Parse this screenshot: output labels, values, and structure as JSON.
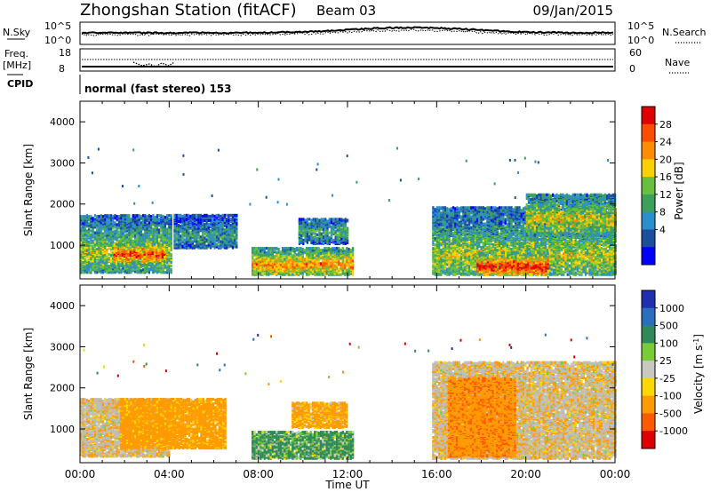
{
  "header": {
    "station": "Zhongshan Station (fitACF)",
    "beam": "Beam 03",
    "date": "09/Jan/2015"
  },
  "summary": {
    "nsky_label": "N.Sky",
    "nsearch_label": "N.Search",
    "left_ticks": [
      "10^5",
      "10^0"
    ],
    "right_ticks": [
      "10^5",
      "10^0"
    ],
    "freq_label": "Freq.",
    "freq_unit": "[MHz]",
    "freq_ticks": [
      "18",
      "8"
    ],
    "nave_label": "Nave",
    "nave_ticks": [
      "60",
      "0"
    ],
    "cpid_label": "CPID",
    "cpid_text": "normal (fast stereo) 153"
  },
  "colors": {
    "power": [
      "#0000ff",
      "#1a4fa0",
      "#2b8fcf",
      "#3aa05a",
      "#66c23a",
      "#ffd000",
      "#ff8c00",
      "#ff4d00",
      "#e00000"
    ],
    "velocity": [
      "#1e2fb0",
      "#2a6fbf",
      "#2e8b57",
      "#7acb3a",
      "#c8c8c0",
      "#ffd700",
      "#ff9a00",
      "#ff5a00",
      "#e00000"
    ],
    "ground_scatter": "#bdbdb5"
  },
  "chart_data": [
    {
      "type": "heatmap",
      "title": "",
      "ylabel": "Slant Range [km]",
      "xlabel": "",
      "ylim": [
        180,
        4500
      ],
      "yticks": [
        "4000",
        "3000",
        "2000",
        "1000"
      ],
      "xticks": [
        "00:00",
        "04:00",
        "08:00",
        "12:00",
        "16:00",
        "20:00",
        "00:00"
      ],
      "colorbar": {
        "label": "Power [dB]",
        "ticks": [
          "28",
          "24",
          "20",
          "16",
          "12",
          "8",
          "4"
        ]
      },
      "regions": [
        {
          "t0": 0.0,
          "t1": 4.1,
          "r0": 300,
          "r1": 1700,
          "core": 800,
          "level": 0.55
        },
        {
          "t0": 1.5,
          "t1": 3.8,
          "r0": 500,
          "r1": 1000,
          "core": 750,
          "level": 0.9
        },
        {
          "t0": 4.2,
          "t1": 7.0,
          "r0": 900,
          "r1": 1700,
          "core": 1200,
          "level": 0.35
        },
        {
          "t0": 7.7,
          "t1": 12.2,
          "r0": 250,
          "r1": 900,
          "core": 500,
          "level": 0.75
        },
        {
          "t0": 9.8,
          "t1": 12.0,
          "r0": 1000,
          "r1": 1600,
          "core": 1300,
          "level": 0.4
        },
        {
          "t0": 15.8,
          "t1": 24.0,
          "r0": 250,
          "r1": 1900,
          "core": 700,
          "level": 0.55
        },
        {
          "t0": 17.8,
          "t1": 21.0,
          "r0": 250,
          "r1": 800,
          "core": 450,
          "level": 0.95
        },
        {
          "t0": 20.0,
          "t1": 24.0,
          "r0": 1200,
          "r1": 2200,
          "core": 1600,
          "level": 0.6
        }
      ]
    },
    {
      "type": "heatmap",
      "title": "",
      "ylabel": "Slant Range [km]",
      "xlabel": "Time UT",
      "ylim": [
        180,
        4500
      ],
      "yticks": [
        "4000",
        "3000",
        "2000",
        "1000"
      ],
      "xticks": [
        "00:00",
        "04:00",
        "08:00",
        "12:00",
        "16:00",
        "20:00",
        "00:00"
      ],
      "colorbar": {
        "label": "Velocity [m s^-1]",
        "ticks": [
          "1000",
          "500",
          "100",
          "25",
          "-25",
          "-100",
          "-500",
          "-1000"
        ]
      },
      "regions": [
        {
          "t0": 0.0,
          "t1": 4.0,
          "r0": 300,
          "r1": 1700,
          "vel": -150,
          "gs": true
        },
        {
          "t0": 1.8,
          "t1": 6.5,
          "r0": 500,
          "r1": 1700,
          "vel": -250,
          "gs": false
        },
        {
          "t0": 7.7,
          "t1": 12.2,
          "r0": 250,
          "r1": 900,
          "vel": 150,
          "gs": false
        },
        {
          "t0": 9.5,
          "t1": 12.0,
          "r0": 1000,
          "r1": 1600,
          "vel": -200,
          "gs": false
        },
        {
          "t0": 15.8,
          "t1": 24.0,
          "r0": 250,
          "r1": 2600,
          "vel": -150,
          "gs": true
        },
        {
          "t0": 16.5,
          "t1": 19.5,
          "r0": 300,
          "r1": 2200,
          "vel": -400,
          "gs": false
        }
      ]
    }
  ]
}
